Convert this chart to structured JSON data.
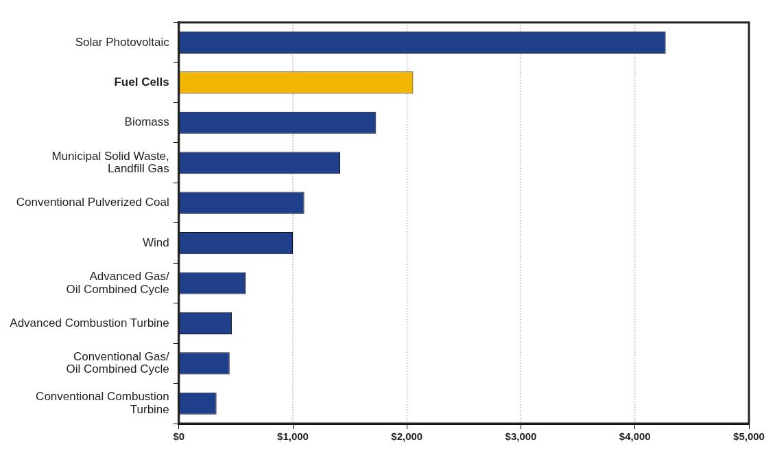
{
  "chart_data": {
    "type": "bar",
    "orientation": "horizontal",
    "categories": [
      "Solar Photovoltaic",
      "Fuel Cells",
      "Biomass",
      "Municipal Solid Waste,\nLandfill Gas",
      "Conventional Pulverized Coal",
      "Wind",
      "Advanced Gas/\nOil Combined Cycle",
      "Advanced Combustion Turbine",
      "Conventional Gas/\nOil Combined Cycle",
      "Conventional Combustion\nTurbine"
    ],
    "values": [
      4270,
      2055,
      1730,
      1415,
      1100,
      1000,
      585,
      465,
      445,
      330
    ],
    "colors": [
      "#1f3f8a",
      "#f2b705",
      "#1f3f8a",
      "#1f3f8a",
      "#1f3f8a",
      "#1f3f8a",
      "#1f3f8a",
      "#1f3f8a",
      "#1f3f8a",
      "#1f3f8a"
    ],
    "xlim": [
      0,
      5000
    ],
    "xticks": [
      {
        "value": 0,
        "label": "$0"
      },
      {
        "value": 1000,
        "label": "$1,000"
      },
      {
        "value": 2000,
        "label": "$2,000"
      },
      {
        "value": 3000,
        "label": "$3,000"
      },
      {
        "value": 4000,
        "label": "$4,000"
      },
      {
        "value": 5000,
        "label": "$5,000"
      }
    ],
    "grid": "x",
    "legend": false
  }
}
